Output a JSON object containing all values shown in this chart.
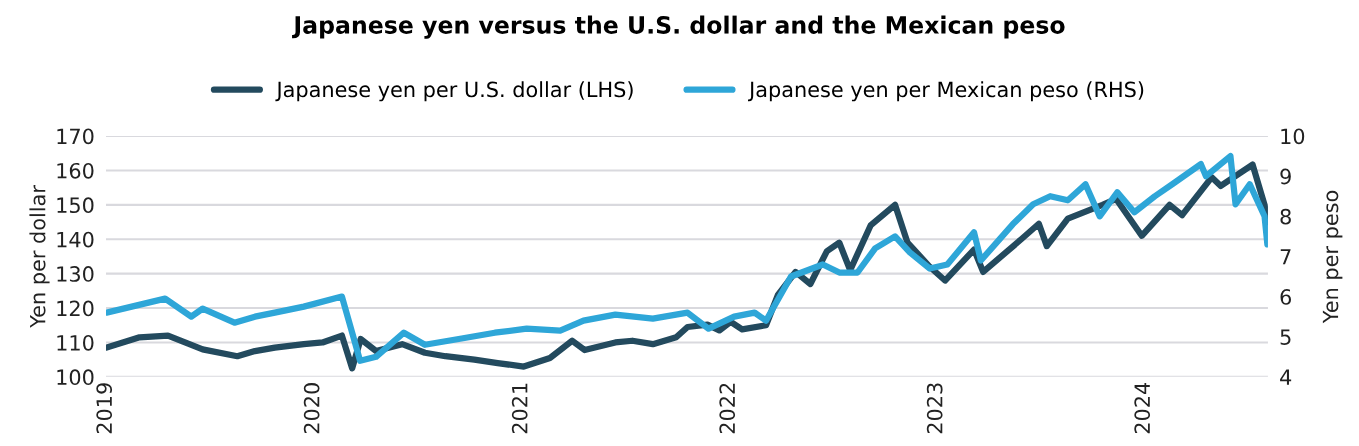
{
  "chart_data": {
    "type": "line",
    "title": "Japanese yen versus the U.S. dollar and the Mexican peso",
    "ylabel": "Yen per dollar",
    "y2label": "Yen per peso",
    "xlim": [
      "2019-01-01",
      "2024-08-06"
    ],
    "xticks": [
      {
        "value": "2019-01-01",
        "label": "2019"
      },
      {
        "value": "2020-01-01",
        "label": "2020"
      },
      {
        "value": "2021-01-01",
        "label": "2021"
      },
      {
        "value": "2022-01-01",
        "label": "2022"
      },
      {
        "value": "2023-01-01",
        "label": "2023"
      },
      {
        "value": "2024-01-01",
        "label": "2024"
      }
    ],
    "ylim": [
      100,
      170
    ],
    "yticks": [
      100,
      110,
      120,
      130,
      140,
      150,
      160,
      170
    ],
    "y2lim": [
      4,
      10
    ],
    "y2ticks": [
      4,
      5,
      6,
      7,
      8,
      9,
      10
    ],
    "grid": "y",
    "legend": "top",
    "line_style": "solid",
    "marker": "none",
    "series": [
      {
        "name": "Japanese yen per U.S. dollar (LHS)",
        "color": "#234a5e",
        "x": [
          "2019-01-02",
          "2019-03-01",
          "2019-04-20",
          "2019-05-20",
          "2019-06-20",
          "2019-08-20",
          "2019-09-20",
          "2019-10-25",
          "2019-12-15",
          "2020-01-17",
          "2020-02-20",
          "2020-03-09",
          "2020-03-24",
          "2020-04-20",
          "2020-06-05",
          "2020-07-15",
          "2020-08-20",
          "2020-10-10",
          "2020-11-20",
          "2021-01-05",
          "2021-02-20",
          "2021-03-31",
          "2021-04-22",
          "2021-06-15",
          "2021-07-15",
          "2021-08-20",
          "2021-09-30",
          "2021-10-20",
          "2021-11-24",
          "2021-12-15",
          "2022-01-04",
          "2022-01-24",
          "2022-03-07",
          "2022-03-28",
          "2022-04-28",
          "2022-05-24",
          "2022-06-22",
          "2022-07-14",
          "2022-08-02",
          "2022-09-07",
          "2022-10-20",
          "2022-11-11",
          "2022-12-20",
          "2023-01-16",
          "2023-03-08",
          "2023-03-24",
          "2023-05-30",
          "2023-06-30",
          "2023-07-14",
          "2023-08-20",
          "2023-10-20",
          "2023-11-13",
          "2023-12-28",
          "2024-02-15",
          "2024-03-08",
          "2024-04-29",
          "2024-05-15",
          "2024-07-10",
          "2024-07-31",
          "2024-08-05"
        ],
        "values": [
          108.5,
          111.5,
          112,
          110,
          108,
          106,
          107.5,
          108.5,
          109.5,
          110,
          112,
          102.5,
          111,
          107.5,
          109.5,
          107,
          106,
          105,
          104,
          103,
          105.5,
          110.5,
          107.8,
          110,
          110.5,
          109.5,
          111.5,
          114.5,
          115.2,
          113.5,
          116,
          113.8,
          115,
          123.8,
          130.5,
          127,
          136.5,
          139,
          131,
          144,
          150,
          139,
          132,
          128,
          137,
          130.5,
          140,
          144.5,
          138,
          146,
          150,
          151.7,
          141,
          150,
          147,
          158,
          155.5,
          161.7,
          150,
          145
        ]
      },
      {
        "name": "Japanese yen per Mexican peso (RHS)",
        "color": "#2ea6d8",
        "axis": "y2",
        "x": [
          "2019-01-02",
          "2019-04-15",
          "2019-05-31",
          "2019-06-20",
          "2019-08-15",
          "2019-09-20",
          "2019-10-25",
          "2019-12-15",
          "2020-02-20",
          "2020-03-09",
          "2020-03-23",
          "2020-04-20",
          "2020-06-08",
          "2020-07-15",
          "2020-09-15",
          "2020-11-15",
          "2021-01-10",
          "2021-03-10",
          "2021-04-20",
          "2021-06-15",
          "2021-08-20",
          "2021-10-20",
          "2021-11-26",
          "2022-01-10",
          "2022-02-15",
          "2022-03-07",
          "2022-04-20",
          "2022-06-15",
          "2022-07-14",
          "2022-08-15",
          "2022-09-15",
          "2022-10-20",
          "2022-11-15",
          "2022-12-20",
          "2023-01-20",
          "2023-03-08",
          "2023-03-20",
          "2023-05-15",
          "2023-06-20",
          "2023-07-20",
          "2023-08-20",
          "2023-09-20",
          "2023-10-15",
          "2023-11-15",
          "2023-12-15",
          "2024-01-20",
          "2024-02-20",
          "2024-04-10",
          "2024-04-19",
          "2024-06-01",
          "2024-06-10",
          "2024-07-05",
          "2024-07-31",
          "2024-08-05"
        ],
        "values": [
          5.6,
          5.95,
          5.5,
          5.7,
          5.35,
          5.5,
          5.6,
          5.75,
          6.0,
          5.1,
          4.4,
          4.5,
          5.1,
          4.8,
          4.95,
          5.1,
          5.2,
          5.15,
          5.4,
          5.55,
          5.45,
          5.6,
          5.2,
          5.5,
          5.6,
          5.4,
          6.5,
          6.8,
          6.6,
          6.6,
          7.2,
          7.5,
          7.1,
          6.7,
          6.8,
          7.6,
          6.9,
          7.8,
          8.3,
          8.5,
          8.4,
          8.8,
          8.0,
          8.6,
          8.1,
          8.5,
          8.8,
          9.3,
          9.0,
          9.5,
          8.3,
          8.8,
          8.0,
          7.3
        ]
      }
    ]
  }
}
